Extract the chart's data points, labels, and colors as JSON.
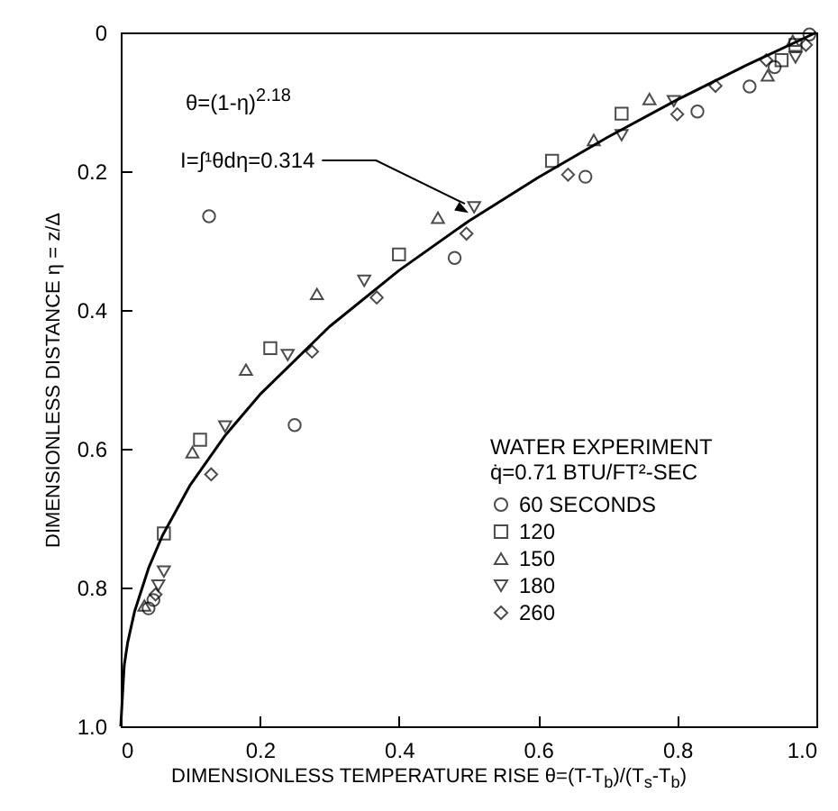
{
  "chart_data": {
    "type": "scatter",
    "xlabel": "DIMENSIONLESS TEMPERATURE RISE θ=(T-T$_{b}$)/(T$_{s}$-T$_{b}$)",
    "ylabel": "DIMENSIONLESS DISTANCE η = z/Δ",
    "legend_title": "WATER EXPERIMENT",
    "annotations": [
      "θ=(1-η)$^{2.18}$",
      {
        "text": "I=∫¹θdη=0.314",
        "x": 0.5,
        "y": 0.26
      },
      "q̇=0.71 BTU/FT²-SEC"
    ],
    "xlim": [
      0,
      1
    ],
    "ylim": [
      1,
      0
    ],
    "xticks": [
      0,
      0.2,
      0.4,
      0.6,
      0.8,
      {
        "value": 1,
        "label": "1.0"
      }
    ],
    "yticks": [
      0,
      0.2,
      0.4,
      0.6,
      0.8,
      {
        "value": 1,
        "label": "1.0"
      }
    ],
    "grid": false,
    "legend": "bottom right",
    "series": [
      {
        "type": "line",
        "color": "#000000",
        "marker": "none",
        "x": [
          0,
          0.005,
          0.01,
          0.02,
          0.04,
          0.06,
          0.1,
          0.15,
          0.2,
          0.3,
          0.4,
          0.5,
          0.6,
          0.7,
          0.8,
          0.9,
          1
        ],
        "values": [
          1,
          0.912,
          0.879,
          0.834,
          0.772,
          0.725,
          0.652,
          0.581,
          0.522,
          0.424,
          0.343,
          0.272,
          0.209,
          0.151,
          0.097,
          0.047,
          0
        ]
      },
      {
        "name": "60 SECONDS",
        "color": "#000000",
        "marker": "circle",
        "x": [
          0.127,
          0.25,
          0.48,
          0.668,
          0.829,
          0.904,
          0.94,
          0.99,
          0.047,
          0.04
        ],
        "values": [
          0.265,
          0.566,
          0.325,
          0.208,
          0.114,
          0.078,
          0.05,
          0.003,
          0.818,
          0.83
        ]
      },
      {
        "name": "120",
        "color": "#000000",
        "marker": "square",
        "x": [
          0.4,
          0.215,
          0.72,
          0.62,
          0.114,
          0.062,
          0.97,
          0.95
        ],
        "values": [
          0.32,
          0.455,
          0.117,
          0.185,
          0.587,
          0.722,
          0.018,
          0.04
        ]
      },
      {
        "name": "150",
        "color": "#000000",
        "marker": "triangle",
        "x": [
          0.456,
          0.282,
          0.18,
          0.76,
          0.68,
          0.93,
          0.966,
          0.103,
          0.034
        ],
        "values": [
          0.267,
          0.377,
          0.486,
          0.096,
          0.155,
          0.062,
          0.012,
          0.605,
          0.826
        ]
      },
      {
        "name": "180",
        "color": "#000000",
        "marker": "triangle-down",
        "x": [
          0.35,
          0.24,
          0.508,
          0.72,
          0.795,
          0.97,
          0.15,
          0.062,
          0.054
        ],
        "values": [
          0.358,
          0.465,
          0.252,
          0.148,
          0.099,
          0.036,
          0.568,
          0.777,
          0.797
        ]
      },
      {
        "name": "260",
        "color": "#000000",
        "marker": "diamond",
        "x": [
          0.368,
          0.275,
          0.497,
          0.643,
          0.8,
          0.855,
          0.928,
          0.985,
          0.13,
          0.05
        ],
        "values": [
          0.382,
          0.46,
          0.29,
          0.205,
          0.118,
          0.077,
          0.04,
          0.018,
          0.637,
          0.81
        ]
      }
    ]
  }
}
